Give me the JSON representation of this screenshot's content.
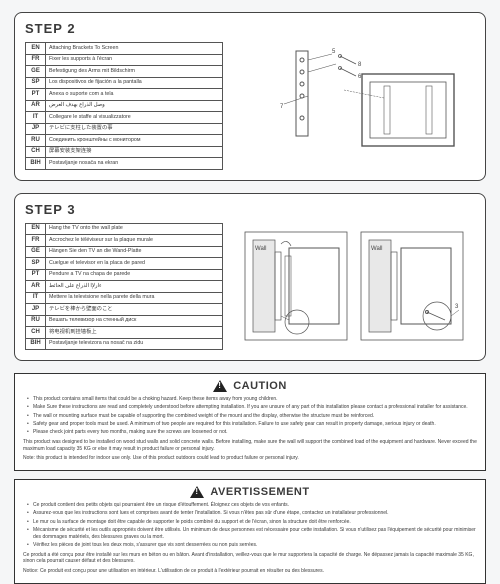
{
  "colors": {
    "page_bg": "#f5f6f7",
    "panel_border": "#444444",
    "text": "#3a3a3a",
    "line": "#555555"
  },
  "step2": {
    "title": "STEP 2",
    "rows": [
      {
        "code": "EN",
        "text": "Attaching Brackets To Screen"
      },
      {
        "code": "FR",
        "text": "Fixer les supports à l'écran"
      },
      {
        "code": "GE",
        "text": "Befestigung des Arms mit Bildschirm"
      },
      {
        "code": "SP",
        "text": "Los dispositivos de fijación a la pantalla"
      },
      {
        "code": "PT",
        "text": "Anexa o suporte com a tela"
      },
      {
        "code": "AR",
        "text": "وصل الذراع بهدف العرض"
      },
      {
        "code": "IT",
        "text": "Collegare le staffe al visualizzatore"
      },
      {
        "code": "JP",
        "text": "テレビに支柱した装置の事"
      },
      {
        "code": "RU",
        "text": "Соединить кронштейны с монитором"
      },
      {
        "code": "CH",
        "text": "屏幕安装支架连接"
      },
      {
        "code": "BIH",
        "text": "Postavljanje nosača na ekran"
      }
    ],
    "diagram": {
      "callouts": [
        "5",
        "6",
        "7",
        "8"
      ]
    }
  },
  "step3": {
    "title": "STEP 3",
    "rows": [
      {
        "code": "EN",
        "text": "Hang the TV onto the wall plate"
      },
      {
        "code": "FR",
        "text": "Accrochez le téléviseur sur la plaque murale"
      },
      {
        "code": "GE",
        "text": "Hängen Sie den TV an die Wand-Platte"
      },
      {
        "code": "SP",
        "text": "Cuelgue el televisor en la placa de pared"
      },
      {
        "code": "PT",
        "text": "Pendure a TV na chapa de parede"
      },
      {
        "code": "AR",
        "text": "ءارلإا الذراع على الحائط"
      },
      {
        "code": "IT",
        "text": "Mettere la televisione nella parete della mura"
      },
      {
        "code": "JP",
        "text": "テレビを棒から壁面のこと"
      },
      {
        "code": "RU",
        "text": "Вешать телевизор на стенный диск"
      },
      {
        "code": "CH",
        "text": "将电视机到挂墙板上"
      },
      {
        "code": "BIH",
        "text": "Postavljanje televizora na nosač na zidu"
      }
    ],
    "diagram": {
      "wall_label": "Wall",
      "callouts": [
        "3"
      ]
    }
  },
  "caution": {
    "title": "CAUTION",
    "bullets": [
      "This product contains small items that could be a choking hazard. Keep these items away from young children.",
      "Make Sure these instructions are read and completely understood before attempting installation. If you are unsure of any part of this installation please contact a professional installer for assistance.",
      "The wall or mounting surface must be capable of supporting the combined weight of the mount and the display, otherwise the structure must be reinforced.",
      "Safety gear and proper tools must be used. A minimum of two people are required for this installation. Failure to use safety gear can result in property damage, serious injury or death.",
      "Please check joint parts every two months, making sure the screws are loosened or not."
    ],
    "para1": "This product was designed to be installed on wood stud walls and solid concrete walls. Before installing, make sure the wall will support the combined load of the equipment and hardware. Never exceed the maximum load capacity  35 KG or else it may result in product failure or personal injury.",
    "para2": "Note: this product is intended for indoor use only. Use of this product outdoors could lead to product failure or personal injury."
  },
  "avert": {
    "title": "AVERTISSEMENT",
    "bullets": [
      "Ce produit contient des petits objets qui pourraient être un risque d'étouffement. Éloignez ces objets de vos enfants.",
      "Assurez-vous que les instructions sont lues et comprises avant de tenter l'installation. Si vous n'êtes pas sûr d'une étape, contactez un installateur professionnel.",
      "Le mur ou la surface de montage doit être capable de supporter le poids combiné du support et de l'écran, sinon la structure doit être renforcée.",
      "Mécanisme de sécurité et les outils appropriés doivent être utilisés. Un minimum de deux personnes est nécessaire pour cette installation. Si vous n'utilisez pas l'équipement de sécurité pour minimiser des dommages matériels, des blessures graves ou la mort.",
      "Vérifiez les pièces de joint tous les deux mois, s'assurer que vis sont desserrées ou non puis serrées."
    ],
    "para1": "Ce produit a été conçu pour être installé sur les murs en béton ou en bâton. Avant d'installation, veillez-vous que le mur supportera la capacité de charge. Ne dépassez jamais la capacité maximale  35 KG, sinon cela pourrait causer défaut et des blessures.",
    "para2": "Notice: Ce produit est conçu pour une utilisation en intérieur. L'utilisation de ce produit à l'extérieur pourrait en résulter ou des blessures."
  }
}
